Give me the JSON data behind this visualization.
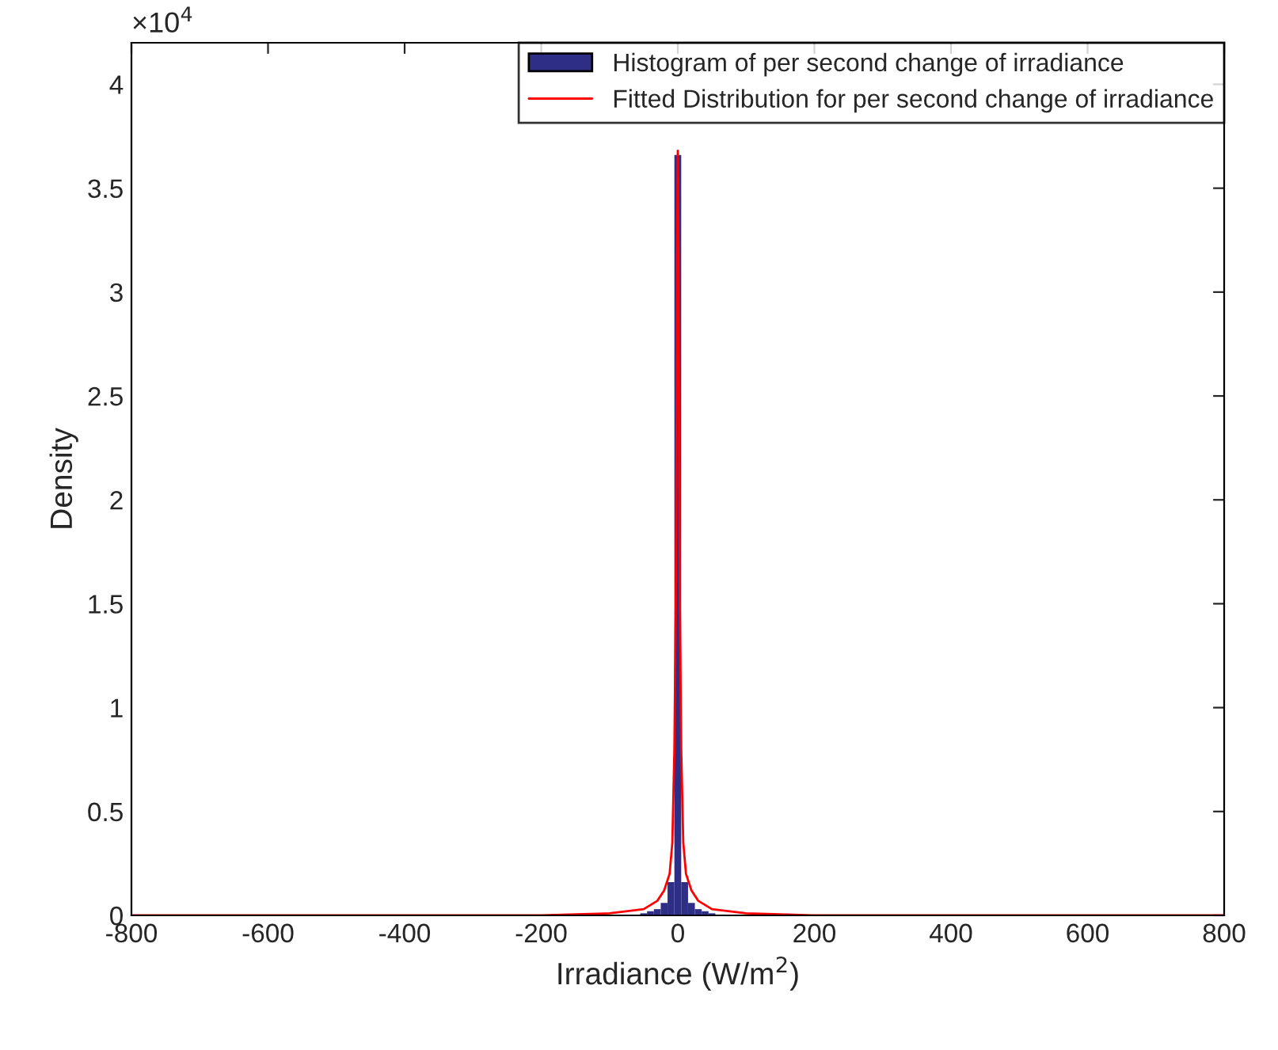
{
  "chart_data": {
    "type": "histogram",
    "xlabel": "Irradiance (W/m$^{2}$)",
    "ylabel": "Density",
    "annotations": [
      "×10$^{4}$"
    ],
    "xlim": [
      -800,
      800
    ],
    "xticks": [
      -800,
      -600,
      -400,
      -200,
      0,
      200,
      400,
      600,
      800
    ],
    "ylim": [
      0,
      4.2
    ],
    "yticks": [
      0,
      0.5,
      1,
      1.5,
      2,
      2.5,
      3,
      3.5,
      4
    ],
    "grid": false,
    "legend": "top right",
    "series": [
      {
        "name": "Histogram of per second change of irradiance",
        "color": "#2e2e87",
        "bins": [
          -55,
          -45,
          -35,
          -25,
          -15,
          -5,
          5,
          15,
          25,
          35,
          45,
          55
        ],
        "values": [
          0.01,
          0.02,
          0.03,
          0.06,
          0.16,
          3.66,
          0.16,
          0.06,
          0.03,
          0.02,
          0.01
        ]
      },
      {
        "type": "line",
        "name": "Fitted Distribution for per second change of irradiance",
        "color": "#ff0000",
        "x": [
          -800,
          -200,
          -100,
          -50,
          -30,
          -20,
          -12,
          -8,
          -5,
          -3,
          -2,
          -1,
          0,
          1,
          2,
          3,
          5,
          8,
          12,
          20,
          30,
          50,
          100,
          200,
          800
        ],
        "values": [
          0,
          0,
          0.01,
          0.03,
          0.07,
          0.12,
          0.2,
          0.35,
          0.8,
          1.5,
          2.2,
          3.2,
          3.68,
          3.2,
          2.2,
          1.5,
          0.8,
          0.35,
          0.2,
          0.12,
          0.07,
          0.03,
          0.01,
          0,
          0
        ]
      }
    ]
  }
}
